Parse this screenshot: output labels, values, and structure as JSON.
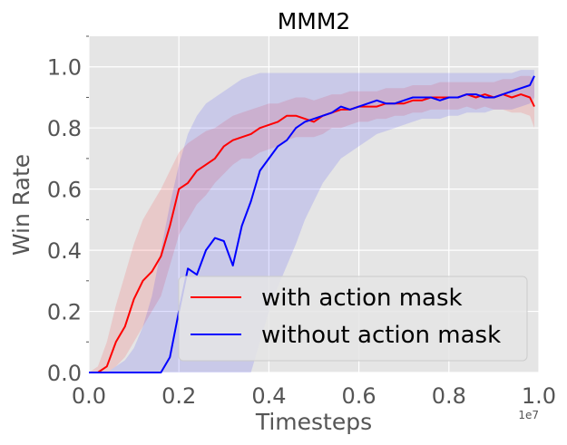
{
  "chart_data": {
    "type": "line",
    "title": "MMM2",
    "xlabel": "Timesteps",
    "ylabel": "Win Rate",
    "x_offset_label": "1e7",
    "xlim": [
      0.0,
      1.0
    ],
    "ylim": [
      0.0,
      1.1
    ],
    "x_ticks": [
      0.0,
      0.2,
      0.4,
      0.6,
      0.8,
      1.0
    ],
    "x_tick_labels": [
      "0.0",
      "0.2",
      "0.4",
      "0.6",
      "0.8",
      "1.0"
    ],
    "y_ticks": [
      0.0,
      0.2,
      0.4,
      0.6,
      0.8,
      1.0
    ],
    "y_tick_labels": [
      "0.0",
      "0.2",
      "0.4",
      "0.6",
      "0.8",
      "1.0"
    ],
    "grid": true,
    "legend_position": "lower-right",
    "background_color": "#e5e5e5",
    "series": [
      {
        "name": "with action mask",
        "color": "#ff0000",
        "x": [
          0.0,
          0.02,
          0.04,
          0.06,
          0.08,
          0.1,
          0.12,
          0.14,
          0.16,
          0.18,
          0.2,
          0.22,
          0.24,
          0.26,
          0.28,
          0.3,
          0.32,
          0.34,
          0.36,
          0.38,
          0.4,
          0.42,
          0.44,
          0.46,
          0.48,
          0.5,
          0.52,
          0.54,
          0.56,
          0.58,
          0.6,
          0.62,
          0.64,
          0.66,
          0.68,
          0.7,
          0.72,
          0.74,
          0.76,
          0.78,
          0.8,
          0.82,
          0.84,
          0.86,
          0.88,
          0.9,
          0.92,
          0.94,
          0.96,
          0.98,
          0.99
        ],
        "y": [
          0.0,
          0.0,
          0.02,
          0.1,
          0.15,
          0.24,
          0.3,
          0.33,
          0.38,
          0.48,
          0.6,
          0.62,
          0.66,
          0.68,
          0.7,
          0.74,
          0.76,
          0.77,
          0.78,
          0.8,
          0.81,
          0.82,
          0.84,
          0.84,
          0.83,
          0.82,
          0.84,
          0.85,
          0.86,
          0.86,
          0.87,
          0.87,
          0.87,
          0.88,
          0.88,
          0.88,
          0.89,
          0.89,
          0.9,
          0.9,
          0.9,
          0.9,
          0.91,
          0.9,
          0.91,
          0.9,
          0.91,
          0.9,
          0.91,
          0.9,
          0.87
        ],
        "band_lower": [
          0.0,
          0.0,
          0.0,
          0.02,
          0.05,
          0.1,
          0.15,
          0.2,
          0.25,
          0.35,
          0.45,
          0.5,
          0.55,
          0.58,
          0.62,
          0.65,
          0.68,
          0.7,
          0.7,
          0.72,
          0.73,
          0.74,
          0.76,
          0.77,
          0.77,
          0.77,
          0.78,
          0.8,
          0.8,
          0.81,
          0.82,
          0.82,
          0.83,
          0.83,
          0.84,
          0.84,
          0.85,
          0.85,
          0.86,
          0.86,
          0.86,
          0.86,
          0.87,
          0.86,
          0.87,
          0.86,
          0.86,
          0.85,
          0.85,
          0.84,
          0.8
        ],
        "band_upper": [
          0.0,
          0.02,
          0.1,
          0.22,
          0.32,
          0.42,
          0.5,
          0.55,
          0.6,
          0.66,
          0.72,
          0.75,
          0.77,
          0.79,
          0.8,
          0.82,
          0.84,
          0.85,
          0.86,
          0.87,
          0.88,
          0.88,
          0.89,
          0.9,
          0.9,
          0.89,
          0.9,
          0.91,
          0.91,
          0.92,
          0.92,
          0.92,
          0.92,
          0.93,
          0.93,
          0.93,
          0.94,
          0.94,
          0.94,
          0.95,
          0.95,
          0.95,
          0.95,
          0.95,
          0.95,
          0.95,
          0.96,
          0.96,
          0.97,
          0.97,
          0.96
        ]
      },
      {
        "name": "without action mask",
        "color": "#0000ff",
        "x": [
          0.0,
          0.02,
          0.04,
          0.06,
          0.08,
          0.1,
          0.12,
          0.14,
          0.16,
          0.18,
          0.2,
          0.22,
          0.24,
          0.26,
          0.28,
          0.3,
          0.32,
          0.34,
          0.36,
          0.38,
          0.4,
          0.42,
          0.44,
          0.46,
          0.48,
          0.5,
          0.52,
          0.54,
          0.56,
          0.58,
          0.6,
          0.62,
          0.64,
          0.66,
          0.68,
          0.7,
          0.72,
          0.74,
          0.76,
          0.78,
          0.8,
          0.82,
          0.84,
          0.86,
          0.88,
          0.9,
          0.92,
          0.94,
          0.96,
          0.98,
          0.99
        ],
        "y": [
          0.0,
          0.0,
          0.0,
          0.0,
          0.0,
          0.0,
          0.0,
          0.0,
          0.0,
          0.05,
          0.2,
          0.34,
          0.32,
          0.4,
          0.44,
          0.43,
          0.35,
          0.48,
          0.56,
          0.66,
          0.7,
          0.74,
          0.76,
          0.8,
          0.82,
          0.83,
          0.84,
          0.85,
          0.87,
          0.86,
          0.87,
          0.88,
          0.89,
          0.88,
          0.88,
          0.89,
          0.9,
          0.9,
          0.9,
          0.89,
          0.9,
          0.9,
          0.91,
          0.91,
          0.9,
          0.9,
          0.91,
          0.92,
          0.93,
          0.94,
          0.97
        ],
        "band_lower": [
          0.0,
          0.0,
          0.0,
          0.0,
          0.0,
          0.0,
          0.0,
          0.0,
          0.0,
          0.0,
          0.0,
          0.0,
          0.0,
          0.0,
          0.0,
          0.0,
          0.0,
          0.0,
          0.0,
          0.1,
          0.2,
          0.28,
          0.35,
          0.42,
          0.5,
          0.56,
          0.62,
          0.66,
          0.7,
          0.72,
          0.74,
          0.76,
          0.78,
          0.79,
          0.8,
          0.81,
          0.82,
          0.83,
          0.83,
          0.83,
          0.84,
          0.84,
          0.85,
          0.85,
          0.85,
          0.86,
          0.86,
          0.86,
          0.87,
          0.88,
          0.9
        ],
        "band_upper": [
          0.0,
          0.0,
          0.0,
          0.02,
          0.04,
          0.08,
          0.15,
          0.25,
          0.4,
          0.55,
          0.68,
          0.78,
          0.84,
          0.88,
          0.9,
          0.92,
          0.94,
          0.96,
          0.97,
          0.98,
          0.98,
          0.98,
          0.98,
          0.98,
          0.98,
          0.98,
          0.98,
          0.98,
          0.98,
          0.98,
          0.98,
          0.98,
          0.98,
          0.98,
          0.98,
          0.98,
          0.98,
          0.98,
          0.98,
          0.98,
          0.98,
          0.98,
          0.98,
          0.98,
          0.98,
          0.98,
          0.98,
          0.98,
          0.99,
          0.99,
          0.99
        ]
      }
    ]
  }
}
